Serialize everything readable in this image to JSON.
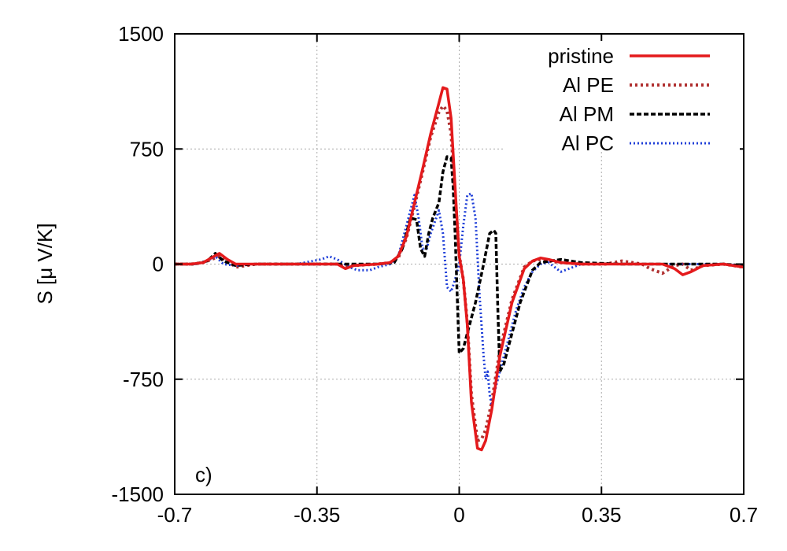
{
  "chart_data": {
    "type": "line",
    "title": "",
    "xlabel": "",
    "ylabel": "S [μ V/K]",
    "panel_label": "c)",
    "xlim": [
      -0.7,
      0.7
    ],
    "ylim": [
      -1500,
      1500
    ],
    "xticks": [
      -0.7,
      -0.35,
      0,
      0.35,
      0.7
    ],
    "yticks": [
      -1500,
      -750,
      0,
      750,
      1500
    ],
    "xtick_labels": [
      "-0.7",
      "-0.35",
      "0",
      "0.35",
      "0.7"
    ],
    "ytick_labels": [
      "-1500",
      "-750",
      "0",
      "750",
      "1500"
    ],
    "grid": true,
    "legend_position": "top-right",
    "series": [
      {
        "name": "pristine",
        "color": "#e41a1c",
        "style": "solid",
        "x": [
          -0.7,
          -0.66,
          -0.63,
          -0.61,
          -0.59,
          -0.57,
          -0.55,
          -0.5,
          -0.4,
          -0.3,
          -0.28,
          -0.26,
          -0.2,
          -0.17,
          -0.15,
          -0.13,
          -0.11,
          -0.09,
          -0.07,
          -0.05,
          -0.04,
          -0.03,
          -0.02,
          -0.01,
          0,
          0.01,
          0.02,
          0.03,
          0.045,
          0.055,
          0.065,
          0.08,
          0.1,
          0.13,
          0.16,
          0.18,
          0.2,
          0.22,
          0.25,
          0.3,
          0.4,
          0.5,
          0.53,
          0.55,
          0.57,
          0.6,
          0.65,
          0.7
        ],
        "y": [
          0,
          0,
          10,
          40,
          70,
          30,
          0,
          0,
          0,
          0,
          -30,
          -10,
          0,
          10,
          50,
          180,
          400,
          620,
          850,
          1050,
          1150,
          1140,
          950,
          500,
          50,
          -100,
          -400,
          -900,
          -1200,
          -1210,
          -1150,
          -950,
          -600,
          -250,
          -30,
          20,
          40,
          30,
          10,
          0,
          0,
          0,
          -30,
          -70,
          -50,
          -10,
          0,
          -20
        ]
      },
      {
        "name": "Al PE",
        "color": "#b03030",
        "style": "dotted-thick",
        "x": [
          -0.7,
          -0.66,
          -0.63,
          -0.61,
          -0.59,
          -0.57,
          -0.55,
          -0.5,
          -0.4,
          -0.3,
          -0.28,
          -0.26,
          -0.2,
          -0.17,
          -0.15,
          -0.13,
          -0.11,
          -0.09,
          -0.07,
          -0.05,
          -0.04,
          -0.03,
          -0.02,
          -0.01,
          0,
          0.01,
          0.02,
          0.03,
          0.045,
          0.055,
          0.065,
          0.08,
          0.1,
          0.13,
          0.16,
          0.18,
          0.2,
          0.22,
          0.25,
          0.3,
          0.36,
          0.38,
          0.4,
          0.45,
          0.47,
          0.5,
          0.53,
          0.55,
          0.57,
          0.6,
          0.65,
          0.7
        ],
        "y": [
          0,
          0,
          10,
          30,
          50,
          20,
          -20,
          0,
          0,
          0,
          -20,
          -10,
          0,
          10,
          40,
          170,
          380,
          600,
          830,
          990,
          1030,
          1000,
          850,
          450,
          60,
          -100,
          -380,
          -850,
          -1150,
          -1140,
          -1080,
          -900,
          -560,
          -230,
          -20,
          20,
          30,
          20,
          10,
          0,
          0,
          10,
          20,
          0,
          -30,
          -60,
          -10,
          0,
          -40,
          -10,
          0,
          -20
        ]
      },
      {
        "name": "Al PM",
        "color": "#000000",
        "style": "dashed",
        "x": [
          -0.7,
          -0.65,
          -0.62,
          -0.6,
          -0.58,
          -0.55,
          -0.5,
          -0.4,
          -0.3,
          -0.2,
          -0.16,
          -0.14,
          -0.12,
          -0.105,
          -0.095,
          -0.085,
          -0.075,
          -0.065,
          -0.05,
          -0.04,
          -0.03,
          -0.02,
          -0.015,
          -0.01,
          -0.005,
          0,
          0.01,
          0.02,
          0.04,
          0.06,
          0.075,
          0.085,
          0.09,
          0.095,
          0.1,
          0.11,
          0.13,
          0.15,
          0.18,
          0.2,
          0.25,
          0.3,
          0.4,
          0.5,
          0.6,
          0.65,
          0.7
        ],
        "y": [
          0,
          0,
          20,
          70,
          20,
          -10,
          0,
          0,
          0,
          0,
          10,
          100,
          300,
          290,
          100,
          50,
          200,
          300,
          400,
          600,
          700,
          690,
          500,
          200,
          -200,
          -580,
          -550,
          -450,
          -250,
          0,
          200,
          220,
          200,
          -300,
          -700,
          -650,
          -450,
          -250,
          -40,
          10,
          30,
          10,
          0,
          0,
          0,
          0,
          -10
        ]
      },
      {
        "name": "Al PC",
        "color": "#1f3fd8",
        "style": "dotted",
        "x": [
          -0.7,
          -0.65,
          -0.62,
          -0.6,
          -0.58,
          -0.55,
          -0.5,
          -0.4,
          -0.34,
          -0.32,
          -0.3,
          -0.27,
          -0.25,
          -0.22,
          -0.2,
          -0.17,
          -0.15,
          -0.13,
          -0.11,
          -0.1,
          -0.09,
          -0.08,
          -0.07,
          -0.05,
          -0.04,
          -0.03,
          -0.02,
          -0.01,
          0,
          0.01,
          0.02,
          0.03,
          0.04,
          0.05,
          0.06,
          0.065,
          0.07,
          0.075,
          0.08,
          0.09,
          0.1,
          0.12,
          0.14,
          0.16,
          0.18,
          0.2,
          0.22,
          0.25,
          0.3,
          0.4,
          0.5,
          0.6,
          0.65,
          0.7
        ],
        "y": [
          0,
          0,
          20,
          50,
          0,
          -10,
          0,
          0,
          30,
          50,
          30,
          -20,
          -40,
          -40,
          -20,
          0,
          50,
          250,
          450,
          300,
          100,
          100,
          200,
          350,
          200,
          -150,
          -180,
          -100,
          0,
          250,
          450,
          460,
          300,
          -200,
          -600,
          -750,
          -700,
          -850,
          -920,
          -800,
          -700,
          -500,
          -300,
          -150,
          -50,
          0,
          10,
          -50,
          0,
          0,
          0,
          0,
          0,
          -10
        ]
      }
    ]
  }
}
